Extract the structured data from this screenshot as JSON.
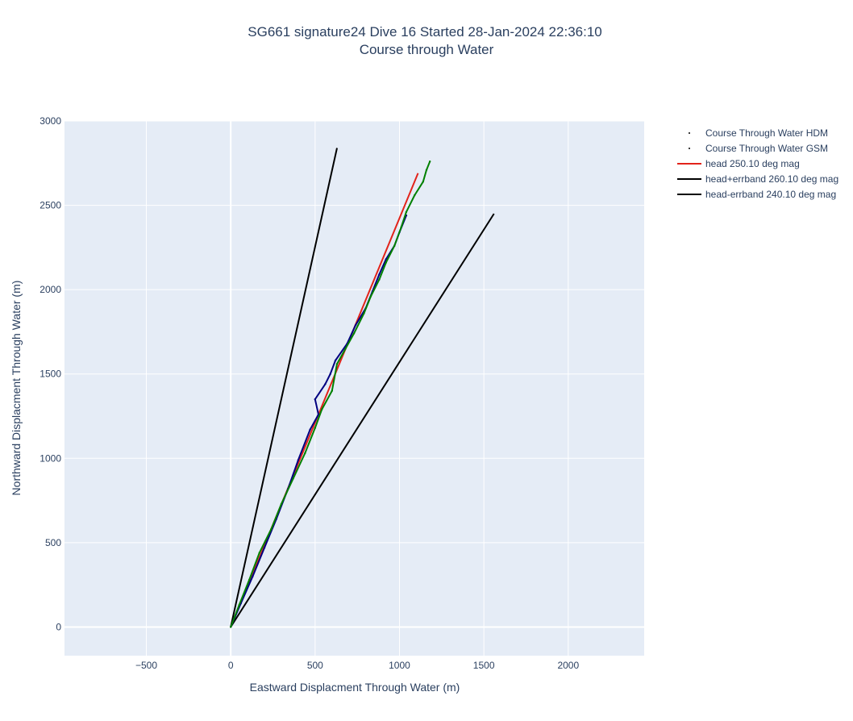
{
  "chart_data": {
    "type": "line",
    "title_lines": [
      "SG661 signature24 Dive 16 Started 28-Jan-2024 22:36:10",
      "Course through Water"
    ],
    "xlabel": "Eastward Displacment Through Water (m)",
    "ylabel": "Northward Displacment Through Water (m)",
    "xlim": [
      -985,
      2450
    ],
    "ylim": [
      -170,
      3000
    ],
    "x_ticks": [
      -500,
      0,
      500,
      1000,
      1500,
      2000
    ],
    "x_tick_labels": [
      "−500",
      "0",
      "500",
      "1000",
      "1500",
      "2000"
    ],
    "y_ticks": [
      0,
      500,
      1000,
      1500,
      2000,
      2500,
      3000
    ],
    "y_tick_labels": [
      "0",
      "500",
      "1000",
      "1500",
      "2000",
      "2500",
      "3000"
    ],
    "grid": true,
    "legend_position": "right",
    "series": [
      {
        "name": "Course Through Water HDM",
        "color": "#000080",
        "marker": "dot",
        "points": [
          [
            0,
            0
          ],
          [
            60,
            140
          ],
          [
            130,
            300
          ],
          [
            200,
            470
          ],
          [
            270,
            640
          ],
          [
            340,
            820
          ],
          [
            400,
            990
          ],
          [
            470,
            1170
          ],
          [
            520,
            1260
          ],
          [
            500,
            1350
          ],
          [
            560,
            1440
          ],
          [
            590,
            1500
          ],
          [
            620,
            1580
          ],
          [
            690,
            1680
          ],
          [
            740,
            1790
          ],
          [
            800,
            1890
          ],
          [
            840,
            1990
          ],
          [
            880,
            2090
          ],
          [
            920,
            2180
          ],
          [
            970,
            2260
          ],
          [
            1000,
            2340
          ],
          [
            1040,
            2440
          ]
        ]
      },
      {
        "name": "Course Through Water GSM",
        "color": "#008000",
        "marker": "dot",
        "points": [
          [
            0,
            0
          ],
          [
            50,
            130
          ],
          [
            110,
            280
          ],
          [
            170,
            440
          ],
          [
            240,
            580
          ],
          [
            300,
            730
          ],
          [
            370,
            880
          ],
          [
            440,
            1030
          ],
          [
            500,
            1180
          ],
          [
            540,
            1290
          ],
          [
            600,
            1400
          ],
          [
            630,
            1560
          ],
          [
            680,
            1650
          ],
          [
            730,
            1740
          ],
          [
            790,
            1860
          ],
          [
            830,
            1960
          ],
          [
            880,
            2060
          ],
          [
            920,
            2160
          ],
          [
            970,
            2260
          ],
          [
            1010,
            2370
          ],
          [
            1040,
            2460
          ],
          [
            1090,
            2560
          ],
          [
            1140,
            2640
          ],
          [
            1160,
            2710
          ],
          [
            1180,
            2760
          ]
        ]
      },
      {
        "name": "head 250.10 deg mag",
        "color": "#e2231a",
        "marker": "line",
        "points": [
          [
            0,
            0
          ],
          [
            1110,
            2690
          ]
        ]
      },
      {
        "name": "head+errband 260.10 deg mag",
        "color": "#000000",
        "marker": "line",
        "points": [
          [
            0,
            0
          ],
          [
            630,
            2840
          ]
        ]
      },
      {
        "name": "head-errband 240.10 deg mag",
        "color": "#000000",
        "marker": "line",
        "points": [
          [
            0,
            0
          ],
          [
            1560,
            2450
          ]
        ]
      }
    ]
  }
}
